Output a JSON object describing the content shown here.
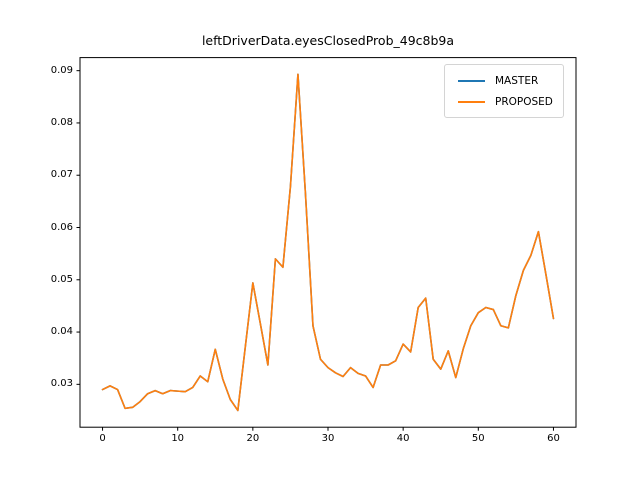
{
  "figure": {
    "title": "leftDriverData.eyesClosedProb_49c8b9a"
  },
  "chart_data": {
    "type": "line",
    "title": "leftDriverData.eyesClosedProb_49c8b9a",
    "xlabel": "",
    "ylabel": "",
    "grid": false,
    "legend_position": "upper right",
    "xlim": [
      -3,
      63
    ],
    "ylim": [
      0.0218,
      0.0925
    ],
    "xticks": [
      0,
      10,
      20,
      30,
      40,
      50,
      60
    ],
    "xtick_labels": [
      "0",
      "10",
      "20",
      "30",
      "40",
      "50",
      "60"
    ],
    "yticks": [
      0.03,
      0.04,
      0.05,
      0.06,
      0.07,
      0.08,
      0.09
    ],
    "ytick_labels": [
      "0.03",
      "0.04",
      "0.05",
      "0.06",
      "0.07",
      "0.08",
      "0.09"
    ],
    "x": [
      0,
      1,
      2,
      3,
      4,
      5,
      6,
      7,
      8,
      9,
      10,
      11,
      12,
      13,
      14,
      15,
      16,
      17,
      18,
      19,
      20,
      21,
      22,
      23,
      24,
      25,
      26,
      27,
      28,
      29,
      30,
      31,
      32,
      33,
      34,
      35,
      36,
      37,
      38,
      39,
      40,
      41,
      42,
      43,
      44,
      45,
      46,
      47,
      48,
      49,
      50,
      51,
      52,
      53,
      54,
      55,
      56,
      57,
      58,
      59,
      60
    ],
    "series": [
      {
        "name": "MASTER",
        "color": "#1f77b4",
        "values": [
          0.029,
          0.0297,
          0.029,
          0.0254,
          0.0256,
          0.0267,
          0.0282,
          0.0288,
          0.0282,
          0.0288,
          0.0287,
          0.0286,
          0.0294,
          0.0316,
          0.0305,
          0.0367,
          0.031,
          0.0271,
          0.025,
          0.0372,
          0.0494,
          0.0416,
          0.0337,
          0.054,
          0.0524,
          0.0678,
          0.0893,
          0.0665,
          0.0412,
          0.0348,
          0.0332,
          0.0322,
          0.0315,
          0.0332,
          0.0321,
          0.0316,
          0.0294,
          0.0337,
          0.0337,
          0.0345,
          0.0377,
          0.0362,
          0.0447,
          0.0465,
          0.0348,
          0.0329,
          0.0364,
          0.0313,
          0.0368,
          0.0412,
          0.0437,
          0.0447,
          0.0443,
          0.0412,
          0.0408,
          0.047,
          0.0518,
          0.0547,
          0.0592,
          0.051,
          0.0426
        ]
      },
      {
        "name": "PROPOSED",
        "color": "#ff7f0e",
        "values": [
          0.029,
          0.0297,
          0.029,
          0.0254,
          0.0256,
          0.0267,
          0.0282,
          0.0288,
          0.0282,
          0.0288,
          0.0287,
          0.0286,
          0.0294,
          0.0316,
          0.0305,
          0.0367,
          0.031,
          0.0271,
          0.025,
          0.0372,
          0.0494,
          0.0416,
          0.0337,
          0.054,
          0.0524,
          0.0678,
          0.0893,
          0.0665,
          0.0412,
          0.0348,
          0.0332,
          0.0322,
          0.0315,
          0.0332,
          0.0321,
          0.0316,
          0.0294,
          0.0337,
          0.0337,
          0.0345,
          0.0377,
          0.0362,
          0.0447,
          0.0465,
          0.0348,
          0.0329,
          0.0364,
          0.0313,
          0.0368,
          0.0412,
          0.0437,
          0.0447,
          0.0443,
          0.0412,
          0.0408,
          0.047,
          0.0518,
          0.0547,
          0.0592,
          0.051,
          0.0426
        ]
      }
    ]
  }
}
